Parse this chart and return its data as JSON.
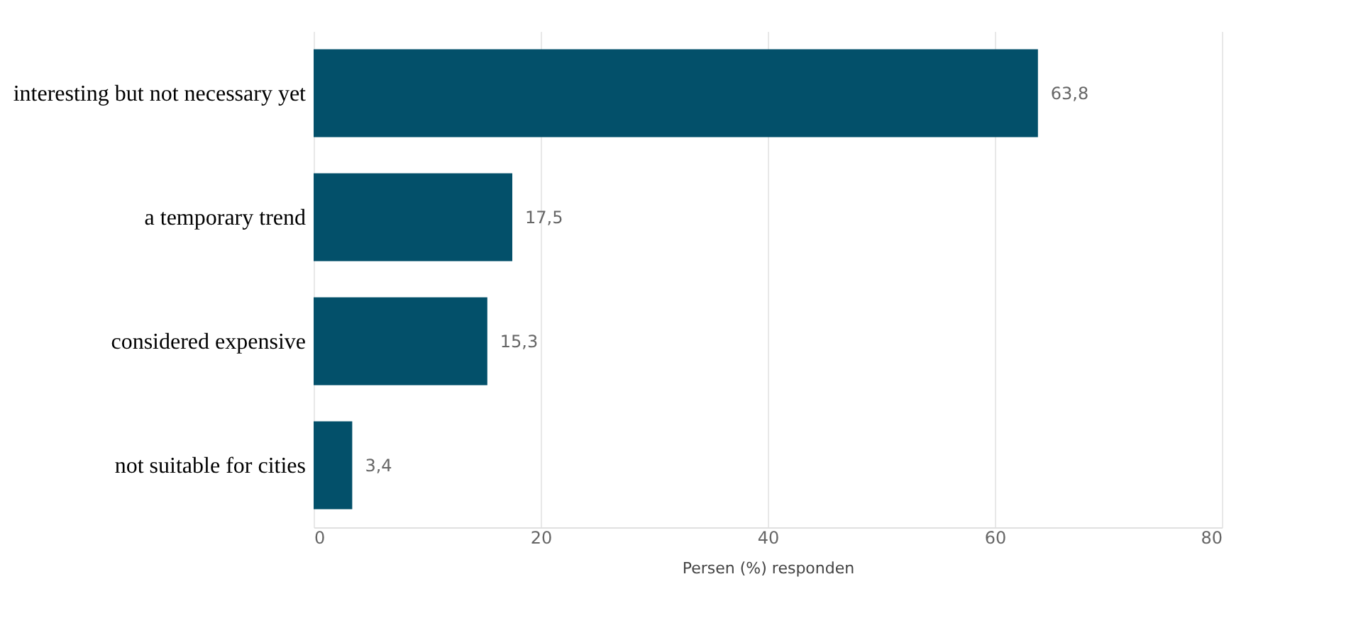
{
  "chart_data": {
    "type": "bar",
    "orientation": "horizontal",
    "xlabel": "Persen (%) responden",
    "categories": [
      "interesting but not necessary yet",
      "a temporary trend",
      "considered expensive",
      "not suitable for cities"
    ],
    "values": [
      63.8,
      17.5,
      15.3,
      3.4
    ],
    "value_labels": [
      "63,8",
      "17,5",
      "15,3",
      "3,4"
    ],
    "color": "#03506a",
    "xlim": [
      0,
      80
    ],
    "xticks": [
      0,
      20,
      40,
      60,
      80
    ],
    "grid": "x"
  }
}
